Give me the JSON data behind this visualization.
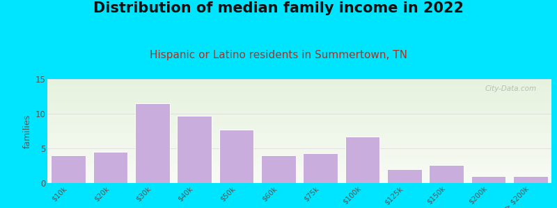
{
  "title": "Distribution of median family income in 2022",
  "subtitle": "Hispanic or Latino residents in Summertown, TN",
  "ylabel": "families",
  "categories": [
    "$10k",
    "$20k",
    "$30k",
    "$40k",
    "$50k",
    "$60k",
    "$75k",
    "$100k",
    "$125k",
    "$150k",
    "$200k",
    "> $200k"
  ],
  "values": [
    4,
    4.5,
    11.5,
    9.7,
    7.7,
    4,
    4.3,
    6.7,
    2,
    2.6,
    1,
    1
  ],
  "bar_color": "#c9aedd",
  "bar_edge_color": "#ffffff",
  "ylim": [
    0,
    15
  ],
  "yticks": [
    0,
    5,
    10,
    15
  ],
  "background_outer": "#00e5ff",
  "bg_top_color": "#e6f2de",
  "bg_bottom_color": "#f8fbf5",
  "title_fontsize": 15,
  "subtitle_fontsize": 11,
  "subtitle_color": "#b03020",
  "ylabel_color": "#555555",
  "tick_label_color": "#555555",
  "watermark": "City-Data.com",
  "title_fontweight": "bold",
  "grid_color": "#dddddd"
}
